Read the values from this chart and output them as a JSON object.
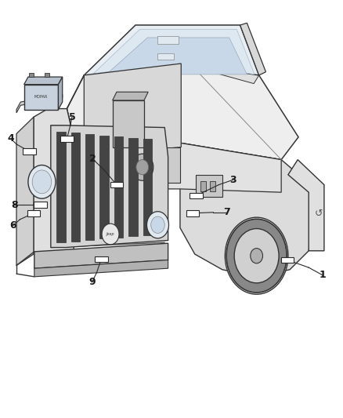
{
  "background_color": "#ffffff",
  "figsize": [
    4.38,
    5.33
  ],
  "dpi": 100,
  "line_color": "#2a2a2a",
  "indicator_color": "#2a2a2a",
  "label_fontsize": 9,
  "label_fontweight": "bold",
  "label_color": "#1a1a1a",
  "callouts": [
    {
      "num": "1",
      "indicator": [
        0.838,
        0.378
      ],
      "waypoint": [
        0.9,
        0.36
      ],
      "label": [
        0.94,
        0.342
      ]
    },
    {
      "num": "2",
      "indicator": [
        0.34,
        0.558
      ],
      "waypoint": [
        0.305,
        0.592
      ],
      "label": [
        0.27,
        0.62
      ]
    },
    {
      "num": "3",
      "indicator": [
        0.572,
        0.532
      ],
      "waypoint": [
        0.638,
        0.558
      ],
      "label": [
        0.68,
        0.57
      ]
    },
    {
      "num": "4",
      "indicator": [
        0.085,
        0.638
      ],
      "waypoint": [
        0.048,
        0.655
      ],
      "label": [
        0.032,
        0.668
      ]
    },
    {
      "num": "5",
      "indicator": [
        0.195,
        0.668
      ],
      "waypoint": [
        0.205,
        0.7
      ],
      "label": [
        0.21,
        0.72
      ]
    },
    {
      "num": "6",
      "indicator": [
        0.098,
        0.49
      ],
      "waypoint": [
        0.058,
        0.475
      ],
      "label": [
        0.038,
        0.46
      ]
    },
    {
      "num": "7",
      "indicator": [
        0.562,
        0.49
      ],
      "waypoint": [
        0.622,
        0.492
      ],
      "label": [
        0.66,
        0.492
      ]
    },
    {
      "num": "8",
      "indicator": [
        0.118,
        0.51
      ],
      "waypoint": [
        0.068,
        0.51
      ],
      "label": [
        0.042,
        0.51
      ]
    },
    {
      "num": "9",
      "indicator": [
        0.295,
        0.38
      ],
      "waypoint": [
        0.282,
        0.348
      ],
      "label": [
        0.268,
        0.325
      ]
    }
  ],
  "jeep_lines": {
    "body_color": "#f5f5f5",
    "line_color": "#333333",
    "shadow_color": "#cccccc"
  }
}
